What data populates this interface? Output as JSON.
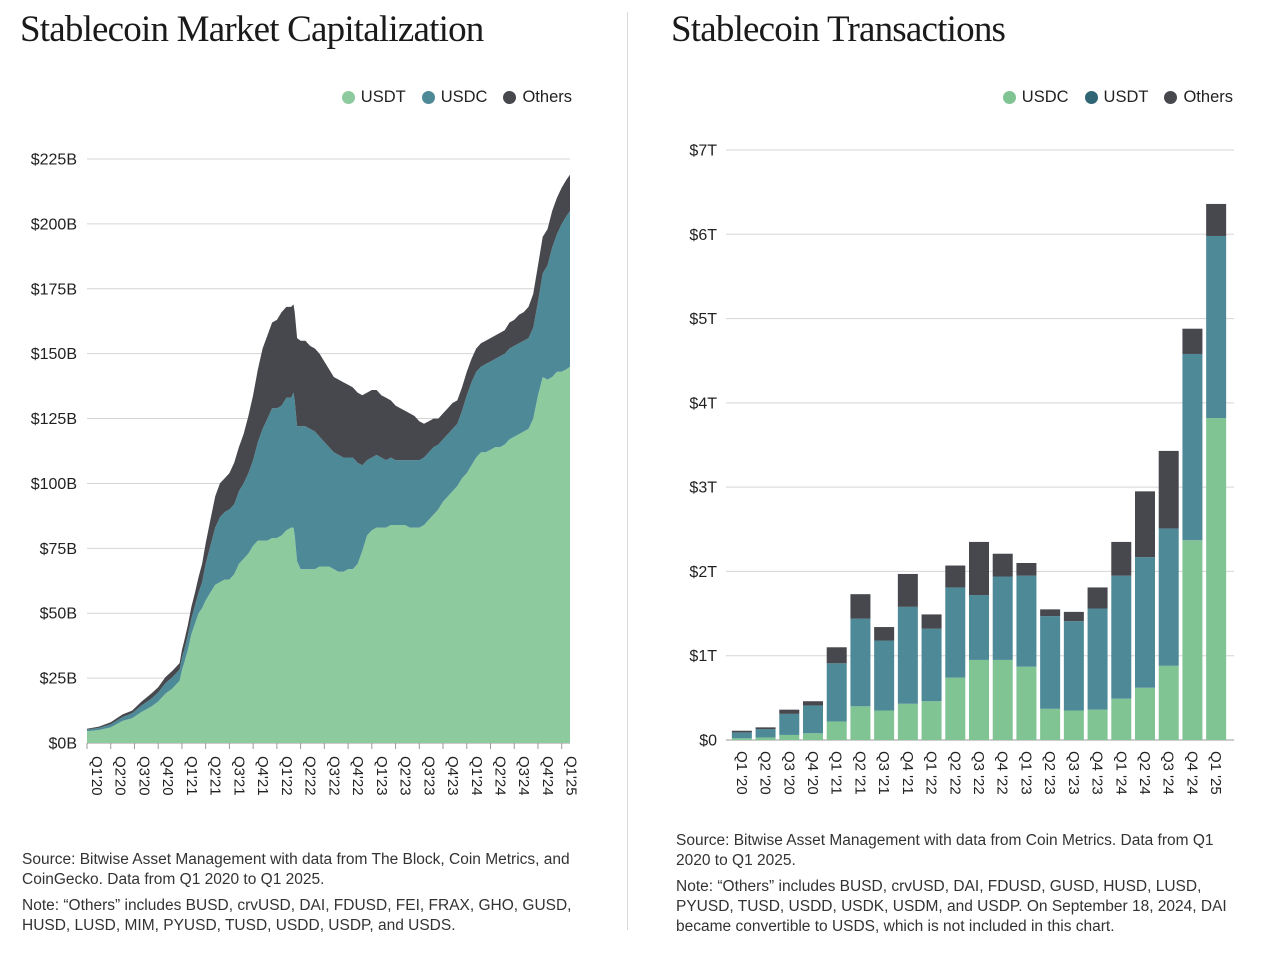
{
  "chart_data": [
    {
      "type": "area",
      "stacked": true,
      "title": "Stablecoin Market Capitalization",
      "xlabel": "",
      "ylabel": "",
      "ylim": [
        0,
        225
      ],
      "y_unit": "$B",
      "y_ticks": [
        0,
        25,
        50,
        75,
        100,
        125,
        150,
        175,
        200,
        225
      ],
      "y_tick_labels": [
        "$0B",
        "$25B",
        "$50B",
        "$75B",
        "$100B",
        "$125B",
        "$150B",
        "$175B",
        "$200B",
        "$225B"
      ],
      "categories": [
        "Q1'20",
        "Q2'20",
        "Q3'20",
        "Q4'20",
        "Q1'21",
        "Q2'21",
        "Q3'21",
        "Q4'21",
        "Q1'22",
        "Q2'22",
        "Q3'22",
        "Q4'22",
        "Q1'23",
        "Q2'23",
        "Q3'23",
        "Q4'23",
        "Q1'24",
        "Q2'24",
        "Q3'24",
        "Q4'24",
        "Q1'25"
      ],
      "legend": [
        "USDT",
        "USDC",
        "Others"
      ],
      "legend_position": "top-right",
      "x": [
        0,
        0.5,
        1,
        1.5,
        1.9,
        2.3,
        2.7,
        3,
        3.3,
        3.6,
        3.9,
        4,
        4.1,
        4.25,
        4.4,
        4.55,
        4.7,
        4.85,
        5,
        5.2,
        5.4,
        5.6,
        5.8,
        6,
        6.2,
        6.4,
        6.6,
        6.8,
        7,
        7.2,
        7.4,
        7.6,
        7.8,
        8,
        8.2,
        8.4,
        8.6,
        8.7,
        8.75,
        8.85,
        9,
        9.2,
        9.4,
        9.6,
        9.8,
        10,
        10.2,
        10.4,
        10.6,
        10.8,
        11,
        11.2,
        11.4,
        11.6,
        11.8,
        12,
        12.2,
        12.4,
        12.6,
        12.8,
        13,
        13.2,
        13.4,
        13.6,
        13.8,
        14,
        14.2,
        14.4,
        14.6,
        14.8,
        15,
        15.2,
        15.4,
        15.6,
        15.8,
        16,
        16.2,
        16.4,
        16.6,
        16.8,
        17,
        17.2,
        17.4,
        17.6,
        17.8,
        18,
        18.2,
        18.4,
        18.6,
        18.8,
        19,
        19.2,
        19.4,
        19.6,
        19.8,
        20,
        20.2,
        20.35
      ],
      "series": [
        {
          "name": "USDT",
          "color": "#8dcb9f",
          "values": [
            4.5,
            5,
            6,
            8.5,
            9.5,
            12,
            14,
            16,
            19,
            21,
            24,
            28,
            31,
            36,
            42,
            46,
            50,
            52,
            55,
            58,
            61,
            62,
            63,
            63,
            65,
            69,
            71,
            73,
            76,
            78,
            78,
            78,
            79,
            79,
            80,
            82,
            83,
            83,
            80,
            70,
            67,
            67,
            67,
            67,
            68,
            68,
            68,
            67,
            66,
            66,
            67,
            67,
            69,
            74,
            80,
            82,
            83,
            83,
            83,
            84,
            84,
            84,
            84,
            83,
            83,
            83,
            84,
            86,
            88,
            90,
            93,
            95,
            97,
            99,
            102,
            104,
            107,
            110,
            112,
            112,
            113,
            114,
            114,
            115,
            117,
            118,
            119,
            120,
            121,
            125,
            134,
            141,
            140,
            141,
            143,
            143,
            144,
            145
          ]
        },
        {
          "name": "USDC",
          "color": "#4e8998",
          "values": [
            0.7,
            0.8,
            1.2,
            1.5,
            2,
            2.5,
            3,
            3.5,
            4,
            4.3,
            4.3,
            4.8,
            5,
            5.5,
            6,
            7,
            8,
            10,
            14,
            18,
            22,
            25,
            26,
            27,
            27,
            28,
            29,
            31,
            33,
            38,
            43,
            47,
            50,
            50,
            50,
            51,
            50,
            52,
            52,
            52,
            55,
            55,
            54,
            53,
            50,
            48,
            46,
            45,
            45,
            44,
            43,
            43,
            39,
            33,
            29,
            28,
            28,
            27,
            26,
            26,
            25,
            25,
            25,
            26,
            26,
            26,
            26,
            26,
            26,
            25,
            24,
            24,
            24,
            24,
            26,
            30,
            32,
            33,
            33,
            34,
            34,
            34,
            35,
            35,
            35,
            35,
            35,
            35,
            35,
            35,
            36,
            40,
            44,
            50,
            53,
            57,
            59,
            60
          ]
        },
        {
          "name": "Others",
          "color": "#46484d",
          "values": [
            0.3,
            0.5,
            0.8,
            1,
            1,
            1.5,
            2,
            2,
            2.3,
            2.5,
            2.5,
            3,
            3.5,
            4,
            4.5,
            5,
            6,
            7,
            8,
            10,
            12,
            13,
            13,
            14,
            16,
            17,
            19,
            22,
            25,
            28,
            31,
            32,
            33,
            34,
            36,
            35,
            35,
            34,
            34,
            34,
            33,
            33,
            32,
            32,
            32,
            31,
            30,
            29,
            29,
            29,
            28,
            27,
            27,
            27,
            26,
            26,
            25,
            24,
            24,
            22,
            21,
            20,
            19,
            18,
            17,
            15,
            13,
            12,
            11,
            10,
            10,
            10,
            10,
            9,
            9,
            9,
            9,
            9,
            9,
            9,
            9,
            9,
            9,
            9,
            10,
            10,
            11,
            11,
            12,
            13,
            14,
            14,
            14,
            14,
            14,
            14,
            14,
            14
          ]
        }
      ]
    },
    {
      "type": "bar",
      "stacked": true,
      "title": "Stablecoin Transactions",
      "xlabel": "",
      "ylabel": "",
      "ylim": [
        0,
        7
      ],
      "y_unit": "$T",
      "y_ticks": [
        0,
        1,
        2,
        3,
        4,
        5,
        6,
        7
      ],
      "y_tick_labels": [
        "$0",
        "$1T",
        "$2T",
        "$3T",
        "$4T",
        "$5T",
        "$6T",
        "$7T"
      ],
      "categories": [
        "Q1 '20",
        "Q2 '20",
        "Q3 '20",
        "Q4 '20",
        "Q1 '21",
        "Q2 '21",
        "Q3 '21",
        "Q4 '21",
        "Q1 '22",
        "Q2 '22",
        "Q3 '22",
        "Q4 '22",
        "Q1 '23",
        "Q2 '23",
        "Q3 '23",
        "Q4 '23",
        "Q1 '24",
        "Q2 '24",
        "Q3 '24",
        "Q4 '24",
        "Q1 '25"
      ],
      "legend": [
        "USDC",
        "USDT",
        "Others"
      ],
      "legend_position": "top-right",
      "series": [
        {
          "name": "USDC",
          "color": "#81c493",
          "values": [
            0.02,
            0.03,
            0.06,
            0.08,
            0.22,
            0.4,
            0.35,
            0.43,
            0.46,
            0.74,
            0.95,
            0.95,
            0.87,
            0.37,
            0.35,
            0.36,
            0.49,
            0.62,
            0.88,
            2.37,
            3.82
          ]
        },
        {
          "name": "USDT",
          "color": "#4e8998",
          "values": [
            0.07,
            0.1,
            0.25,
            0.33,
            0.69,
            1.04,
            0.83,
            1.15,
            0.86,
            1.07,
            0.77,
            0.99,
            1.08,
            1.1,
            1.06,
            1.2,
            1.46,
            1.55,
            1.63,
            2.21,
            2.16
          ]
        },
        {
          "name": "Others",
          "color": "#46484d",
          "values": [
            0.02,
            0.02,
            0.05,
            0.05,
            0.19,
            0.29,
            0.16,
            0.39,
            0.17,
            0.26,
            0.63,
            0.27,
            0.15,
            0.08,
            0.11,
            0.25,
            0.4,
            0.78,
            0.92,
            0.3,
            0.38
          ]
        }
      ]
    }
  ],
  "left": {
    "source": "Source: Bitwise Asset Management with data from The Block, Coin Metrics, and CoinGecko. Data from Q1 2020 to Q1 2025.",
    "note": "Note: “Others” includes BUSD, crvUSD, DAI, FDUSD, FEI, FRAX, GHO, GUSD, HUSD, LUSD, MIM, PYUSD, TUSD, USDD, USDP, and USDS."
  },
  "right": {
    "source": "Source: Bitwise Asset Management with data from Coin Metrics. Data from Q1 2020 to Q1 2025.",
    "note": "Note: “Others” includes BUSD, crvUSD, DAI, FDUSD, GUSD, HUSD, LUSD, PYUSD, TUSD, USDD, USDK, USDM, and USDP. On September 18, 2024, DAI became convertible to USDS, which is not included in this chart."
  }
}
